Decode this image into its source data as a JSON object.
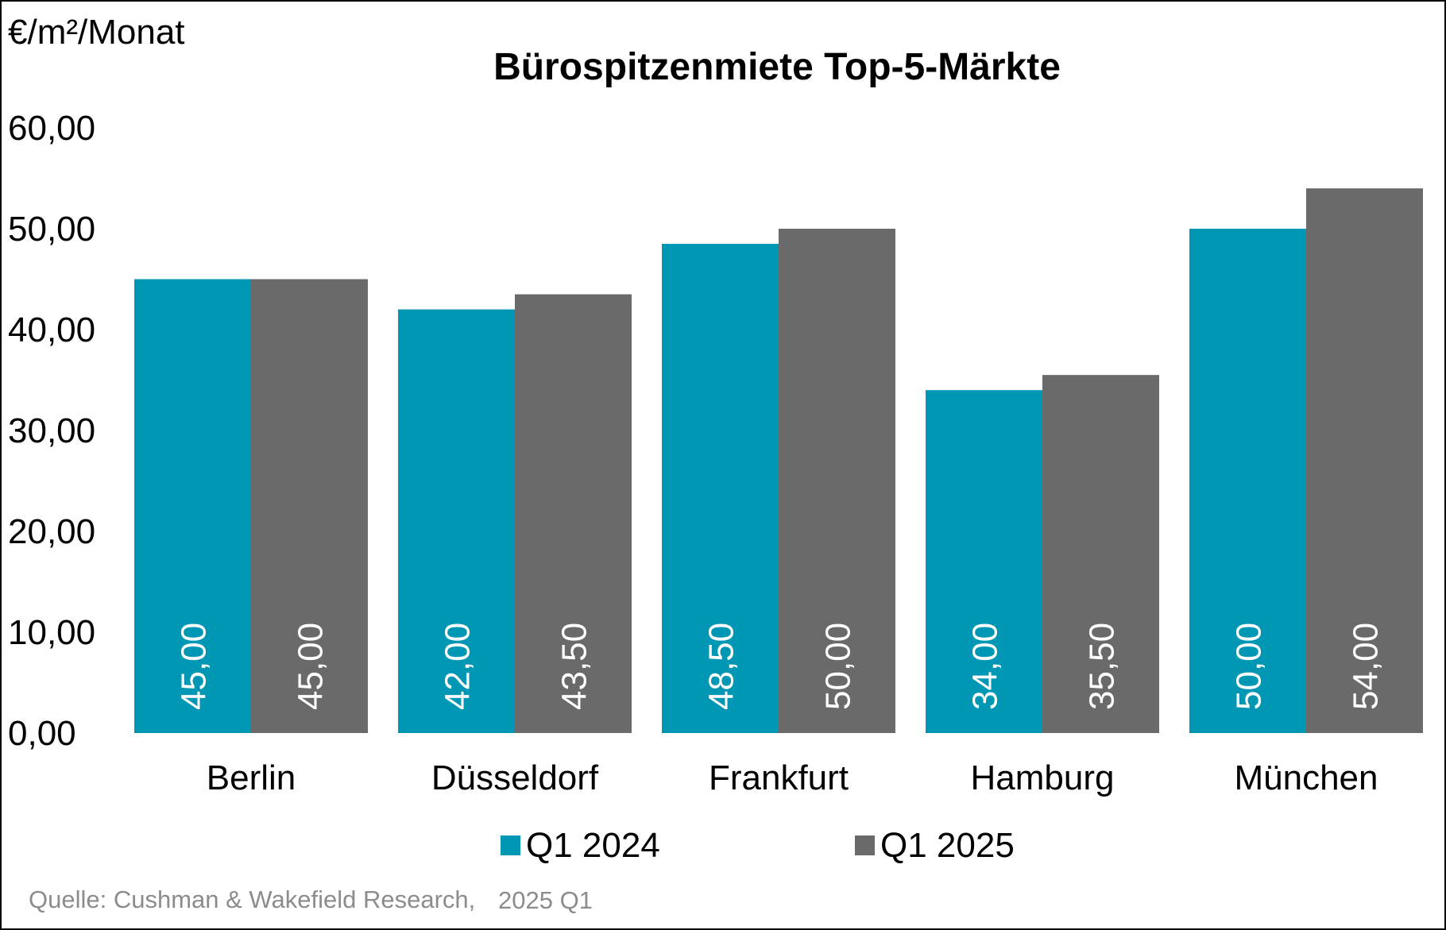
{
  "chart_data": {
    "type": "bar",
    "title": "Bürospitzenmiete Top-5-Märkte",
    "ylabel": "€/m²/Monat",
    "xlabel": "",
    "categories": [
      "Berlin",
      "Düsseldorf",
      "Frankfurt",
      "Hamburg",
      "München"
    ],
    "series": [
      {
        "name": "Q1 2024",
        "color": "#0097b5",
        "values": [
          45.0,
          42.0,
          48.5,
          34.0,
          50.0
        ],
        "labels": [
          "45,00",
          "42,00",
          "48,50",
          "34,00",
          "50,00"
        ]
      },
      {
        "name": "Q1 2025",
        "color": "#696a69",
        "values": [
          45.0,
          43.5,
          50.0,
          35.5,
          54.0
        ],
        "labels": [
          "45,00",
          "43,50",
          "50,00",
          "35,50",
          "54,00"
        ]
      }
    ],
    "ylim": [
      0,
      60
    ],
    "yticks": [
      0,
      10,
      20,
      30,
      40,
      50,
      60
    ],
    "ytick_labels": [
      "0,00",
      "10,00",
      "20,00",
      "30,00",
      "40,00",
      "50,00",
      "60,00"
    ],
    "grid": false,
    "legend_position": "bottom",
    "source": {
      "text": "Quelle: Cushman & Wakefield Research,",
      "period": "2025 Q1"
    }
  }
}
